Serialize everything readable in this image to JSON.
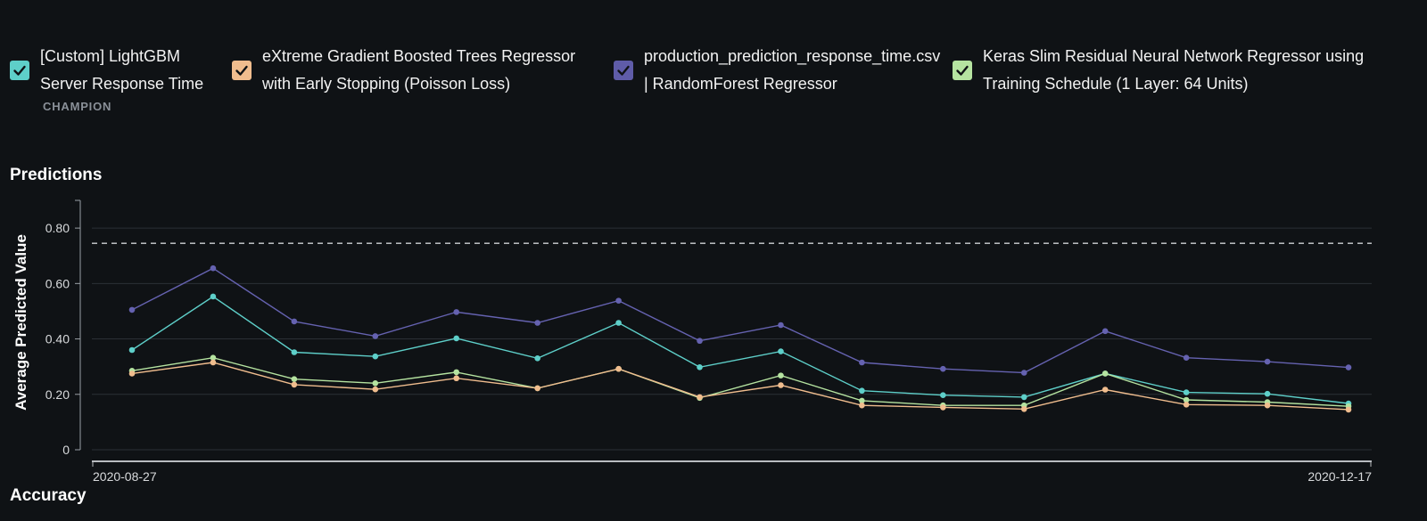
{
  "legend": [
    {
      "lines": [
        "[Custom] LightGBM",
        "Server Response Time"
      ],
      "badge": "CHAMPION",
      "color": "#5ecfc9",
      "checked": true
    },
    {
      "lines": [
        "eXtreme Gradient Boosted Trees Regressor",
        "with Early Stopping (Poisson Loss)"
      ],
      "badge": "",
      "color": "#f0bd8e",
      "checked": true
    },
    {
      "lines": [
        "production_prediction_response_time.csv",
        "| RandomForest Regressor"
      ],
      "badge": "",
      "color": "#5f5ca8",
      "checked": true
    },
    {
      "lines": [
        "Keras Slim Residual Neural Network Regressor using",
        "Training Schedule (1 Layer: 64 Units)"
      ],
      "badge": "",
      "color": "#b5e3a0",
      "checked": true
    }
  ],
  "sections": {
    "predictions_title": "Predictions",
    "accuracy_title": "Accuracy"
  },
  "chart_data": {
    "type": "line",
    "title": "Predictions",
    "xlabel": "",
    "ylabel": "Average Predicted Value",
    "ylim": [
      0,
      0.9
    ],
    "yticks": [
      {
        "value": 0,
        "label": "0"
      },
      {
        "value": 0.2,
        "label": "0.20"
      },
      {
        "value": 0.4,
        "label": "0.40"
      },
      {
        "value": 0.6,
        "label": "0.60"
      },
      {
        "value": 0.8,
        "label": "0.80"
      }
    ],
    "x_labels": [
      "2020-08-27",
      "2020-12-17"
    ],
    "reference_line": 0.745,
    "grid": true,
    "legend_position": "top",
    "series": [
      {
        "name": "production_prediction_response_time.csv | RandomForest Regressor",
        "color": "#6562b0",
        "values": [
          0.505,
          0.655,
          0.463,
          0.41,
          0.497,
          0.458,
          0.538,
          0.393,
          0.45,
          0.315,
          0.292,
          0.278,
          0.428,
          0.332,
          0.318,
          0.297
        ]
      },
      {
        "name": "[Custom] LightGBM Server Response Time",
        "color": "#5ecfc9",
        "values": [
          0.36,
          0.553,
          0.352,
          0.337,
          0.402,
          0.33,
          0.458,
          0.298,
          0.355,
          0.213,
          0.197,
          0.19,
          0.275,
          0.207,
          0.202,
          0.167
        ]
      },
      {
        "name": "Keras Slim Residual Neural Network Regressor using Training Schedule (1 Layer: 64 Units)",
        "color": "#b5e3a0",
        "values": [
          0.285,
          0.332,
          0.255,
          0.24,
          0.28,
          0.222,
          0.292,
          0.187,
          0.268,
          0.177,
          0.16,
          0.16,
          0.275,
          0.18,
          0.172,
          0.157
        ]
      },
      {
        "name": "eXtreme Gradient Boosted Trees Regressor with Early Stopping (Poisson Loss)",
        "color": "#f0bd8e",
        "values": [
          0.275,
          0.315,
          0.235,
          0.218,
          0.258,
          0.222,
          0.292,
          0.19,
          0.233,
          0.16,
          0.153,
          0.147,
          0.217,
          0.163,
          0.16,
          0.145
        ]
      }
    ]
  }
}
